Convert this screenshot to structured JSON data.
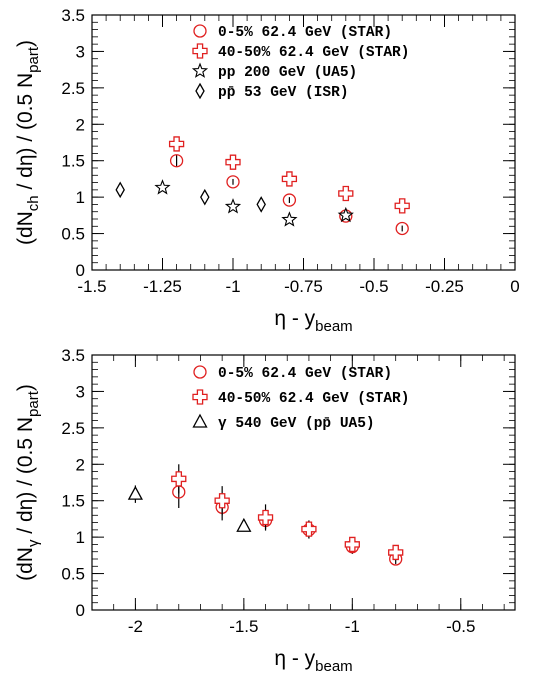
{
  "chart_data": [
    {
      "type": "scatter",
      "title": "",
      "xlabel": "η - y_beam",
      "xlabel_main": "η - y",
      "xlabel_sub": "beam",
      "ylabel": "(dN_ch / dη) / (0.5 N_part)",
      "ylabel_pre": "(dN",
      "ylabel_sub1": "ch",
      "ylabel_mid": " / dη) / (0.5 N",
      "ylabel_sub2": "part",
      "ylabel_post": ")",
      "xlim": [
        -1.5,
        0
      ],
      "ylim": [
        0,
        3.5
      ],
      "xticks": [
        -1.5,
        -1.25,
        -1,
        -0.75,
        -0.5,
        -0.25,
        0
      ],
      "xtick_labels": [
        "-1.5",
        "-1.25",
        "-1",
        "-0.75",
        "-0.5",
        "-0.25",
        "0"
      ],
      "yticks": [
        0,
        0.5,
        1,
        1.5,
        2,
        2.5,
        3,
        3.5
      ],
      "ytick_labels": [
        "0",
        "0.5",
        "1",
        "1.5",
        "2",
        "2.5",
        "3",
        "3.5"
      ],
      "legend_position": "top-right",
      "series": [
        {
          "name": "0-5% 62.4 GeV (STAR)",
          "marker": "circle",
          "color": "#e02020",
          "points": [
            {
              "x": -1.2,
              "y": 1.5,
              "err": 0.08
            },
            {
              "x": -1.0,
              "y": 1.21,
              "err": 0.04
            },
            {
              "x": -0.8,
              "y": 0.96,
              "err": 0.04
            },
            {
              "x": -0.6,
              "y": 0.74,
              "err": 0.04
            },
            {
              "x": -0.4,
              "y": 0.57,
              "err": 0.04
            }
          ]
        },
        {
          "name": "40-50% 62.4 GeV (STAR)",
          "marker": "cross",
          "color": "#e02020",
          "points": [
            {
              "x": -1.2,
              "y": 1.73,
              "err": 0.1
            },
            {
              "x": -1.0,
              "y": 1.48,
              "err": 0.1
            },
            {
              "x": -0.8,
              "y": 1.25,
              "err": 0.05
            },
            {
              "x": -0.6,
              "y": 1.05,
              "err": 0.05
            },
            {
              "x": -0.4,
              "y": 0.88,
              "err": 0.05
            }
          ]
        },
        {
          "name": "pp 200 GeV (UA5)",
          "marker": "star",
          "color": "#000000",
          "points": [
            {
              "x": -1.25,
              "y": 1.13
            },
            {
              "x": -1.0,
              "y": 0.87
            },
            {
              "x": -0.8,
              "y": 0.69
            },
            {
              "x": -0.6,
              "y": 0.75
            }
          ]
        },
        {
          "name": "pp̄ 53 GeV (ISR)",
          "marker": "diamond",
          "color": "#000000",
          "points": [
            {
              "x": -1.4,
              "y": 1.1
            },
            {
              "x": -1.1,
              "y": 1.0
            },
            {
              "x": -0.9,
              "y": 0.9
            }
          ]
        }
      ]
    },
    {
      "type": "scatter",
      "title": "",
      "xlabel": "η - y_beam",
      "xlabel_main": "η - y",
      "xlabel_sub": "beam",
      "ylabel": "(dN_γ / dη) / (0.5 N_part)",
      "ylabel_pre": "(dN",
      "ylabel_sub1": "γ",
      "ylabel_mid": " / dη) / (0.5 N",
      "ylabel_sub2": "part",
      "ylabel_post": ")",
      "xlim": [
        -2.2,
        -0.25
      ],
      "ylim": [
        0,
        3.5
      ],
      "xticks": [
        -2,
        -1.5,
        -1,
        -0.5
      ],
      "xtick_labels": [
        "-2",
        "-1.5",
        "-1",
        "-0.5"
      ],
      "yticks": [
        0,
        0.5,
        1,
        1.5,
        2,
        2.5,
        3,
        3.5
      ],
      "ytick_labels": [
        "0",
        "0.5",
        "1",
        "1.5",
        "2",
        "2.5",
        "3",
        "3.5"
      ],
      "legend_position": "top-right",
      "series": [
        {
          "name": "0-5% 62.4 GeV (STAR)",
          "marker": "circle",
          "color": "#e02020",
          "points": [
            {
              "x": -1.8,
              "y": 1.62,
              "err": 0.22
            },
            {
              "x": -1.6,
              "y": 1.41,
              "err": 0.18
            },
            {
              "x": -1.4,
              "y": 1.23,
              "err": 0.12
            },
            {
              "x": -1.2,
              "y": 1.1,
              "err": 0.12
            },
            {
              "x": -1.0,
              "y": 0.87,
              "err": 0.1
            },
            {
              "x": -0.8,
              "y": 0.7,
              "err": 0.07
            }
          ]
        },
        {
          "name": "40-50% 62.4 GeV (STAR)",
          "marker": "cross",
          "color": "#e02020",
          "points": [
            {
              "x": -1.8,
              "y": 1.8,
              "err": 0.2
            },
            {
              "x": -1.6,
              "y": 1.5,
              "err": 0.2
            },
            {
              "x": -1.4,
              "y": 1.27,
              "err": 0.18
            },
            {
              "x": -1.2,
              "y": 1.11,
              "err": 0.12
            },
            {
              "x": -1.0,
              "y": 0.9,
              "err": 0.1
            },
            {
              "x": -0.8,
              "y": 0.79,
              "err": 0.08
            }
          ]
        },
        {
          "name": "γ 540 GeV (pp̄ UA5)",
          "marker": "triangle",
          "color": "#000000",
          "points": [
            {
              "x": -2.0,
              "y": 1.59,
              "err": 0.12
            },
            {
              "x": -1.5,
              "y": 1.15,
              "err": 0.06
            }
          ]
        }
      ]
    }
  ]
}
